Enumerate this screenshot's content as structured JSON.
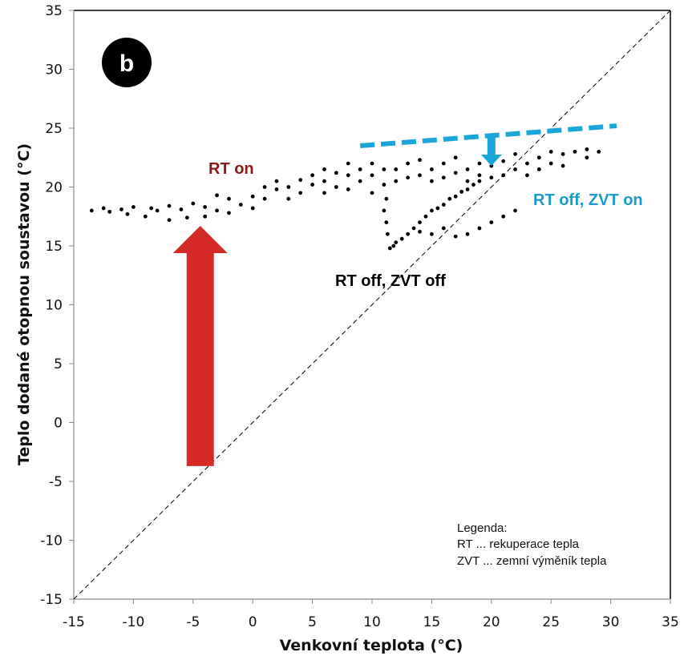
{
  "chart_data": {
    "type": "scatter",
    "panel_label": "b",
    "xlabel": "Venkovní teplota (°C)",
    "ylabel": "Teplo dodané otopnou soustavou (°C)",
    "xlim": [
      -15,
      35
    ],
    "ylim": [
      -15,
      35
    ],
    "xticks": [
      -15,
      -10,
      -5,
      0,
      5,
      10,
      15,
      20,
      25,
      30,
      35
    ],
    "yticks": [
      -15,
      -10,
      -5,
      0,
      5,
      10,
      15,
      20,
      25,
      30,
      35
    ],
    "grid": false,
    "point_color": "#000000",
    "points": [
      [
        -13.5,
        18
      ],
      [
        -12.5,
        18.2
      ],
      [
        -12,
        17.9
      ],
      [
        -11,
        18.1
      ],
      [
        -10.5,
        17.7
      ],
      [
        -10,
        18.3
      ],
      [
        -9,
        17.5
      ],
      [
        -8.5,
        18.2
      ],
      [
        -8,
        18
      ],
      [
        -7,
        17.2
      ],
      [
        -7,
        18.4
      ],
      [
        -6,
        18.1
      ],
      [
        -5.5,
        17.4
      ],
      [
        -5,
        18.6
      ],
      [
        -4,
        18.3
      ],
      [
        -4,
        17.5
      ],
      [
        -3,
        19.3
      ],
      [
        -3,
        18
      ],
      [
        -2,
        19
      ],
      [
        -2,
        17.8
      ],
      [
        -1,
        18.5
      ],
      [
        0,
        19.2
      ],
      [
        0,
        18.2
      ],
      [
        1,
        19
      ],
      [
        1,
        20
      ],
      [
        2,
        19.8
      ],
      [
        2,
        20.5
      ],
      [
        3,
        20
      ],
      [
        3,
        19
      ],
      [
        4,
        19.5
      ],
      [
        4,
        20.6
      ],
      [
        5,
        20.2
      ],
      [
        5,
        21
      ],
      [
        6,
        20.5
      ],
      [
        6,
        21.5
      ],
      [
        6,
        19.5
      ],
      [
        7,
        20
      ],
      [
        7,
        21.2
      ],
      [
        8,
        21
      ],
      [
        8,
        22
      ],
      [
        8,
        19.8
      ],
      [
        9,
        20.5
      ],
      [
        9,
        21.5
      ],
      [
        10,
        21
      ],
      [
        10,
        19.5
      ],
      [
        10,
        22
      ],
      [
        11,
        20.2
      ],
      [
        11,
        21.5
      ],
      [
        12,
        21.5
      ],
      [
        12,
        20.5
      ],
      [
        13,
        20.8
      ],
      [
        13,
        22
      ],
      [
        14,
        21
      ],
      [
        14,
        22.3
      ],
      [
        15,
        21.5
      ],
      [
        15,
        20.5
      ],
      [
        16,
        20.8
      ],
      [
        16,
        22
      ],
      [
        17,
        21.2
      ],
      [
        17,
        22.5
      ],
      [
        18,
        21.5
      ],
      [
        18,
        20.5
      ],
      [
        19,
        22
      ],
      [
        19,
        21
      ],
      [
        20,
        21.8
      ],
      [
        20,
        22.8
      ],
      [
        21,
        22.2
      ],
      [
        21,
        21
      ],
      [
        22,
        21.5
      ],
      [
        22,
        22.8
      ],
      [
        23,
        22
      ],
      [
        23,
        21
      ],
      [
        24,
        22.5
      ],
      [
        24,
        21.5
      ],
      [
        25,
        22
      ],
      [
        25,
        23
      ],
      [
        26,
        22.8
      ],
      [
        26,
        21.8
      ],
      [
        27,
        23
      ],
      [
        28,
        23.2
      ],
      [
        28,
        22.5
      ],
      [
        29,
        23
      ],
      [
        11.5,
        14.8
      ],
      [
        11.8,
        15
      ],
      [
        12,
        15.3
      ],
      [
        12.5,
        15.6
      ],
      [
        13,
        16
      ],
      [
        13.5,
        16.5
      ],
      [
        14,
        17
      ],
      [
        14.5,
        17.5
      ],
      [
        15,
        18
      ],
      [
        15.5,
        18.2
      ],
      [
        16,
        18.5
      ],
      [
        16.5,
        19
      ],
      [
        17,
        19.2
      ],
      [
        17.5,
        19.6
      ],
      [
        18,
        19.8
      ],
      [
        18.5,
        20.2
      ],
      [
        19,
        20.5
      ],
      [
        20,
        20.8
      ],
      [
        11.3,
        16
      ],
      [
        11.2,
        17
      ],
      [
        11,
        18
      ],
      [
        11.2,
        19
      ],
      [
        14,
        16.2
      ],
      [
        15,
        16
      ],
      [
        16,
        16.5
      ],
      [
        17,
        15.8
      ],
      [
        18,
        16
      ],
      [
        19,
        16.5
      ],
      [
        20,
        17
      ],
      [
        21,
        17.5
      ],
      [
        22,
        18
      ]
    ],
    "diagonal": {
      "from": [
        -15,
        -15
      ],
      "to": [
        35,
        35
      ],
      "style": "dashed"
    },
    "annotations": {
      "rt_on": {
        "text": "RT on",
        "color": "#8b1a1a"
      },
      "rt_off_zvt_on": {
        "text": "RT off, ZVT on",
        "color": "#1a9bd0"
      },
      "rt_off_zvt_off": {
        "text": "RT off,  ZVT off",
        "color": "#000000"
      },
      "red_arrow": {
        "x": -4.4,
        "y_from": -3.7,
        "y_to": 16.7,
        "color": "#d62a27"
      },
      "cyan_line": {
        "from": [
          9,
          23.5
        ],
        "to": [
          30.5,
          25.2
        ],
        "color": "#1aa6d8",
        "style": "dashed"
      },
      "cyan_arrow": {
        "x": 20,
        "y_from": 24.3,
        "y_to": 21.8,
        "color": "#1aa6d8"
      }
    },
    "legend": {
      "title": "Legenda:",
      "lines": [
        "RT ... rekuperace tepla",
        "ZVT ... zemní výměník tepla"
      ],
      "placement": "bottom-right"
    }
  }
}
